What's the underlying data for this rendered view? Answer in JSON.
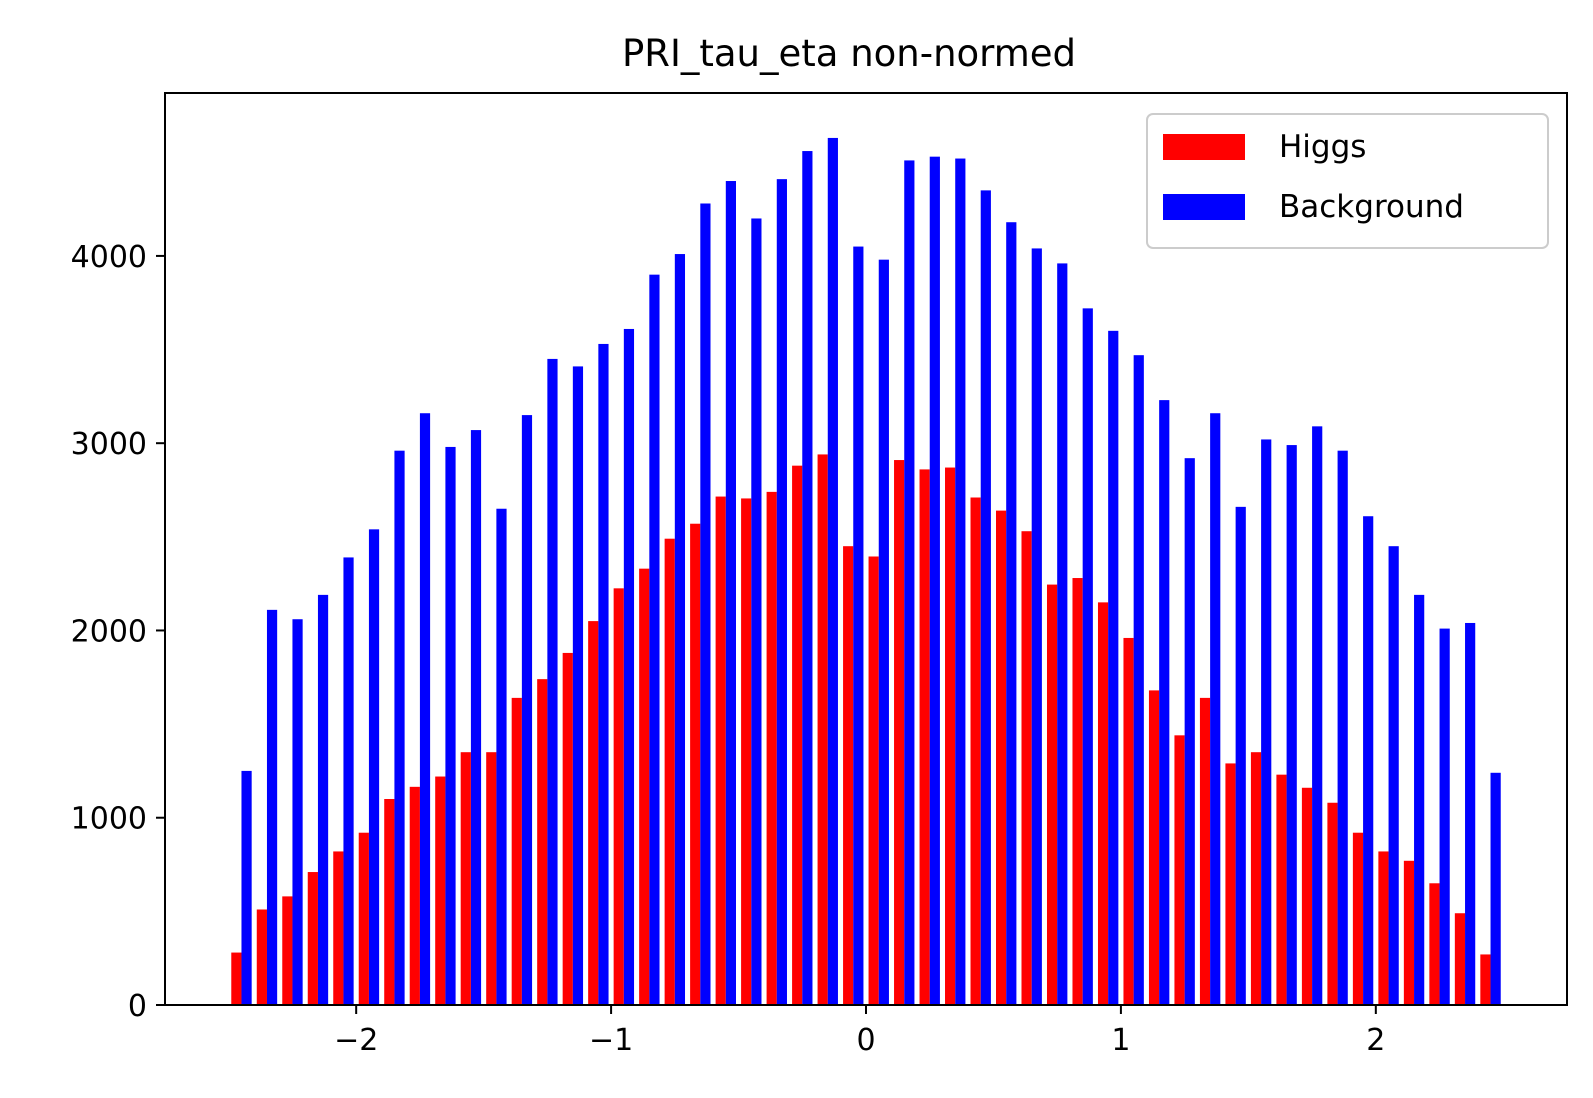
{
  "chart_data": {
    "type": "bar",
    "title": "PRI_tau_eta non-normed",
    "xlabel": "",
    "ylabel": "",
    "xlim": [
      -2.75,
      2.75
    ],
    "ylim": [
      0,
      4870
    ],
    "x_ticks": [
      -2,
      -1,
      0,
      1,
      2
    ],
    "y_ticks": [
      0,
      1000,
      2000,
      3000,
      4000
    ],
    "grid": false,
    "legend_position": "top-right",
    "bin_start": -2.5,
    "bin_width": 0.1,
    "series": [
      {
        "name": "Higgs",
        "color": "#ff0000",
        "values": [
          280,
          510,
          580,
          710,
          820,
          920,
          1100,
          1165,
          1220,
          1350,
          1350,
          1640,
          1740,
          1880,
          2050,
          2225,
          2330,
          2490,
          2570,
          2715,
          2705,
          2740,
          2880,
          2940,
          2450,
          2395,
          2910,
          2860,
          2870,
          2710,
          2640,
          2530,
          2245,
          2280,
          2150,
          1960,
          1680,
          1440,
          1640,
          1290,
          1350,
          1230,
          1160,
          1080,
          920,
          820,
          770,
          650,
          490,
          270
        ]
      },
      {
        "name": "Background",
        "color": "#0000ff",
        "values": [
          1250,
          2110,
          2060,
          2190,
          2390,
          2540,
          2960,
          3160,
          2980,
          3070,
          2650,
          3150,
          3450,
          3410,
          3530,
          3610,
          3900,
          4010,
          4280,
          4400,
          4200,
          4410,
          4560,
          4630,
          4050,
          3980,
          4510,
          4530,
          4520,
          4350,
          4180,
          4040,
          3960,
          3720,
          3600,
          3470,
          3230,
          2920,
          3160,
          2660,
          3020,
          2990,
          3090,
          2960,
          2610,
          2450,
          2190,
          2010,
          2040,
          1240
        ]
      }
    ]
  }
}
